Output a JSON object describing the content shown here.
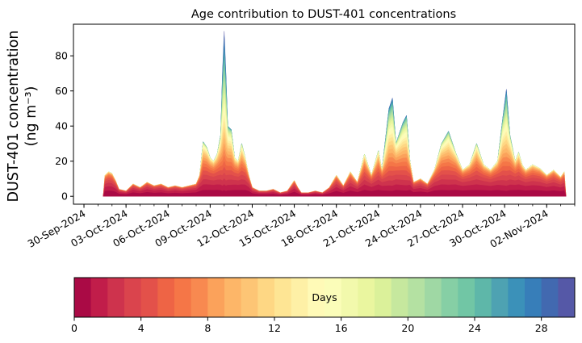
{
  "chart_data": {
    "type": "area",
    "stacked": true,
    "title": "Age contribution to DUST-401 concentrations",
    "ylabel_line1": "DUST-401 concentration",
    "ylabel_line2": "(ng m⁻³)",
    "xlabel": "",
    "x_range": [
      "2024-09-29T06:00",
      "2024-11-04T00:00"
    ],
    "ylim": [
      -4.5,
      98
    ],
    "yticks": [
      0,
      20,
      40,
      60,
      80
    ],
    "xticks": [
      "30-Sep-2024",
      "03-Oct-2024",
      "06-Oct-2024",
      "09-Oct-2024",
      "12-Oct-2024",
      "15-Oct-2024",
      "18-Oct-2024",
      "21-Oct-2024",
      "24-Oct-2024",
      "27-Oct-2024",
      "30-Oct-2024",
      "02-Nov-2024"
    ],
    "age_days_min": 0,
    "age_days_max": 30,
    "total_series": {
      "name": "total",
      "points": [
        [
          "2024-10-01T09:00",
          0
        ],
        [
          "2024-10-01T12:00",
          12
        ],
        [
          "2024-10-01T18:00",
          14
        ],
        [
          "2024-10-02T00:00",
          13
        ],
        [
          "2024-10-02T06:00",
          9
        ],
        [
          "2024-10-02T12:00",
          4
        ],
        [
          "2024-10-03T00:00",
          3
        ],
        [
          "2024-10-03T12:00",
          7
        ],
        [
          "2024-10-04T00:00",
          5
        ],
        [
          "2024-10-04T12:00",
          8
        ],
        [
          "2024-10-05T00:00",
          6
        ],
        [
          "2024-10-05T12:00",
          7
        ],
        [
          "2024-10-06T00:00",
          5
        ],
        [
          "2024-10-06T12:00",
          6
        ],
        [
          "2024-10-07T00:00",
          5
        ],
        [
          "2024-10-07T12:00",
          6
        ],
        [
          "2024-10-08T00:00",
          7
        ],
        [
          "2024-10-08T06:00",
          12
        ],
        [
          "2024-10-08T12:00",
          31
        ],
        [
          "2024-10-08T18:00",
          28
        ],
        [
          "2024-10-09T00:00",
          22
        ],
        [
          "2024-10-09T06:00",
          20
        ],
        [
          "2024-10-09T12:00",
          24
        ],
        [
          "2024-10-09T18:00",
          35
        ],
        [
          "2024-10-09T21:00",
          70
        ],
        [
          "2024-10-10T00:00",
          94
        ],
        [
          "2024-10-10T03:00",
          70
        ],
        [
          "2024-10-10T06:00",
          40
        ],
        [
          "2024-10-10T12:00",
          38
        ],
        [
          "2024-10-10T18:00",
          22
        ],
        [
          "2024-10-11T00:00",
          20
        ],
        [
          "2024-10-11T06:00",
          30
        ],
        [
          "2024-10-11T12:00",
          22
        ],
        [
          "2024-10-11T18:00",
          12
        ],
        [
          "2024-10-12T00:00",
          5
        ],
        [
          "2024-10-12T12:00",
          3
        ],
        [
          "2024-10-13T00:00",
          3
        ],
        [
          "2024-10-13T12:00",
          4
        ],
        [
          "2024-10-14T00:00",
          2
        ],
        [
          "2024-10-14T12:00",
          3
        ],
        [
          "2024-10-15T00:00",
          9
        ],
        [
          "2024-10-15T06:00",
          5
        ],
        [
          "2024-10-15T12:00",
          2
        ],
        [
          "2024-10-16T00:00",
          2
        ],
        [
          "2024-10-16T12:00",
          3
        ],
        [
          "2024-10-17T00:00",
          2
        ],
        [
          "2024-10-17T12:00",
          5
        ],
        [
          "2024-10-18T00:00",
          12
        ],
        [
          "2024-10-18T12:00",
          6
        ],
        [
          "2024-10-19T00:00",
          14
        ],
        [
          "2024-10-19T12:00",
          8
        ],
        [
          "2024-10-20T00:00",
          24
        ],
        [
          "2024-10-20T12:00",
          12
        ],
        [
          "2024-10-21T00:00",
          26
        ],
        [
          "2024-10-21T06:00",
          15
        ],
        [
          "2024-10-21T18:00",
          50
        ],
        [
          "2024-10-22T00:00",
          56
        ],
        [
          "2024-10-22T06:00",
          30
        ],
        [
          "2024-10-22T18:00",
          42
        ],
        [
          "2024-10-23T00:00",
          46
        ],
        [
          "2024-10-23T06:00",
          20
        ],
        [
          "2024-10-23T12:00",
          8
        ],
        [
          "2024-10-24T00:00",
          10
        ],
        [
          "2024-10-24T12:00",
          7
        ],
        [
          "2024-10-25T00:00",
          15
        ],
        [
          "2024-10-25T12:00",
          30
        ],
        [
          "2024-10-26T00:00",
          37
        ],
        [
          "2024-10-26T12:00",
          25
        ],
        [
          "2024-10-27T00:00",
          15
        ],
        [
          "2024-10-27T12:00",
          18
        ],
        [
          "2024-10-28T00:00",
          30
        ],
        [
          "2024-10-28T12:00",
          18
        ],
        [
          "2024-10-29T00:00",
          15
        ],
        [
          "2024-10-29T12:00",
          20
        ],
        [
          "2024-10-29T21:00",
          45
        ],
        [
          "2024-10-30T03:00",
          61
        ],
        [
          "2024-10-30T09:00",
          35
        ],
        [
          "2024-10-30T18:00",
          20
        ],
        [
          "2024-10-31T00:00",
          25
        ],
        [
          "2024-10-31T06:00",
          18
        ],
        [
          "2024-10-31T12:00",
          15
        ],
        [
          "2024-11-01T00:00",
          18
        ],
        [
          "2024-11-01T12:00",
          16
        ],
        [
          "2024-11-02T00:00",
          12
        ],
        [
          "2024-11-02T12:00",
          15
        ],
        [
          "2024-11-03T00:00",
          11
        ],
        [
          "2024-11-03T06:00",
          14
        ],
        [
          "2024-11-03T09:00",
          0
        ]
      ]
    },
    "colorbar": {
      "label": "Days",
      "min": 0,
      "max": 30,
      "ticks": [
        0,
        4,
        8,
        12,
        16,
        20,
        24,
        28
      ],
      "bins": 30,
      "colormap": "Spectral",
      "colors": [
        "#9e0142",
        "#c11d4a",
        "#d53e4f",
        "#e3514a",
        "#f46d43",
        "#f88950",
        "#fdae61",
        "#fdc575",
        "#fee08b",
        "#fef0a6",
        "#ffffbf",
        "#f2f9ac",
        "#e6f598",
        "#c6e89e",
        "#abdda4",
        "#86cfa5",
        "#66c2a5",
        "#4ea2b2",
        "#3288bd",
        "#4269b0",
        "#5e4fa2"
      ]
    }
  }
}
